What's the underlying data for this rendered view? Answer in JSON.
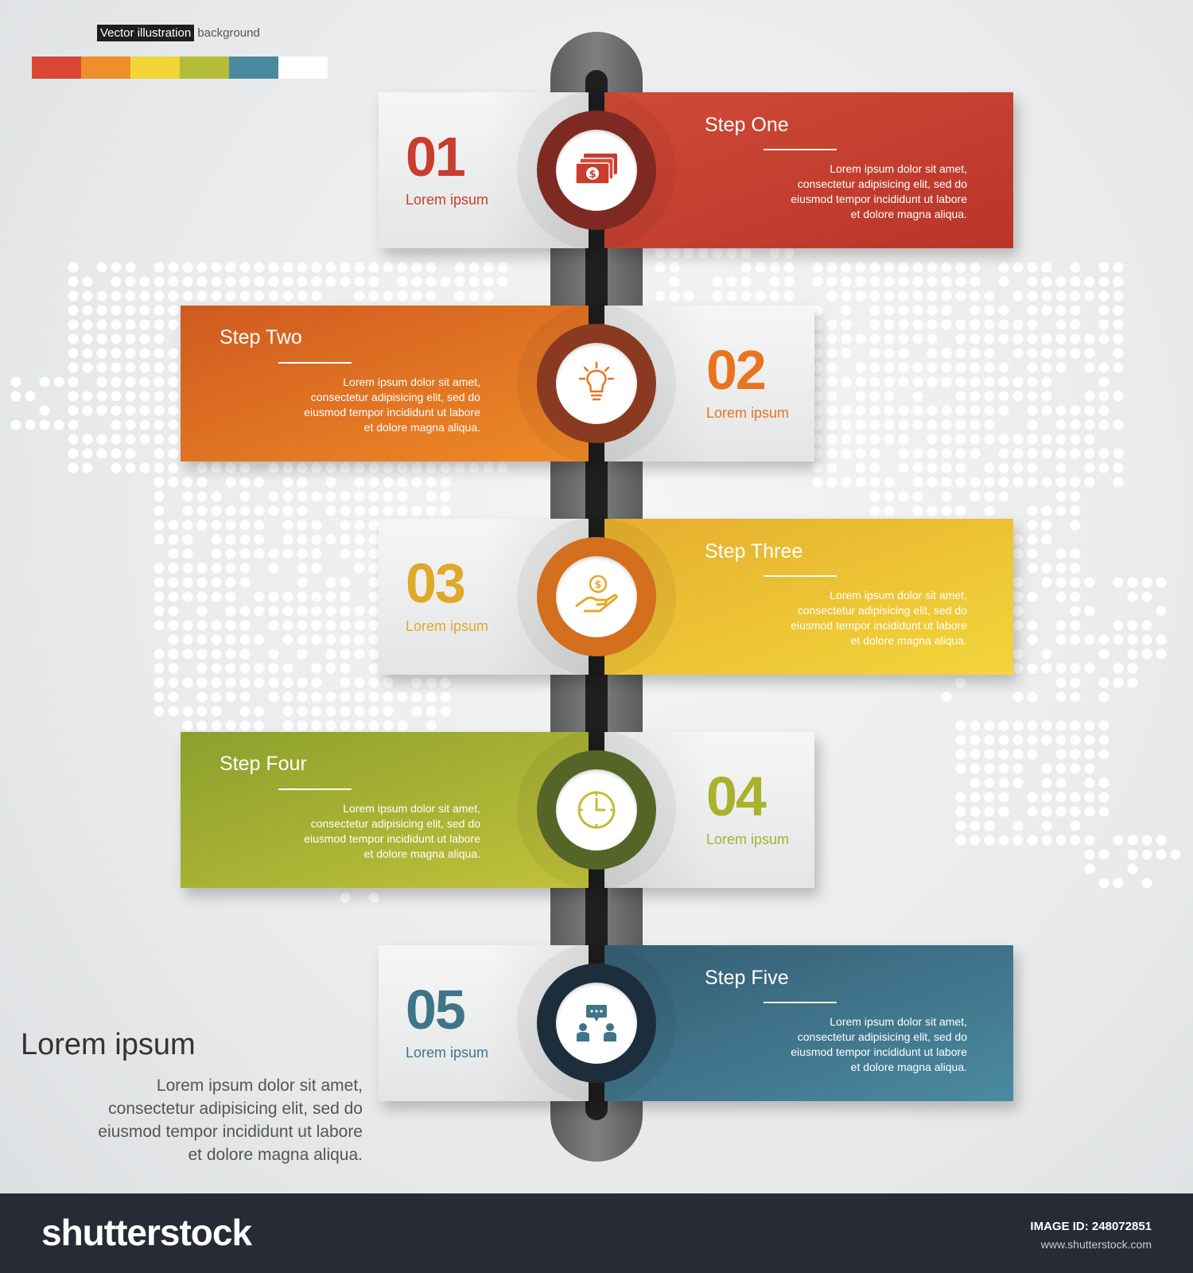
{
  "header": {
    "caption_highlight": "Vector illustration",
    "caption_rest": "background",
    "palette": [
      "#d94836",
      "#ef8e2a",
      "#f1d635",
      "#b5bd38",
      "#4a8a9e",
      "#ffffff"
    ]
  },
  "steps": [
    {
      "number": "01",
      "subtitle": "Lorem ipsum",
      "title": "Step One",
      "description": "Lorem ipsum dolor sit amet,\nconsectetur adipisicing elit, sed do\neiusmod tempor incididunt ut labore\net dolore magna aliqua.",
      "icon": "money-icon",
      "color": "#c73d2e",
      "dark": "#7e2a22"
    },
    {
      "number": "02",
      "subtitle": "Lorem ipsum",
      "title": "Step Two",
      "description": "Lorem ipsum dolor sit amet,\nconsectetur adipisicing elit, sed do\neiusmod tempor incididunt ut labore\net dolore magna aliqua.",
      "icon": "lightbulb-icon",
      "color": "#e9741f",
      "dark": "#8a3a20"
    },
    {
      "number": "03",
      "subtitle": "Lorem ipsum",
      "title": "Step Three",
      "description": "Lorem ipsum dolor sit amet,\nconsectetur adipisicing elit, sed do\neiusmod tempor incididunt ut labore\net dolore magna aliqua.",
      "icon": "hand-coin-icon",
      "color": "#eab72c",
      "dark": "#d36f1d"
    },
    {
      "number": "04",
      "subtitle": "Lorem ipsum",
      "title": "Step Four",
      "description": "Lorem ipsum dolor sit amet,\nconsectetur adipisicing elit, sed do\neiusmod tempor incididunt ut labore\net dolore magna aliqua.",
      "icon": "clock-icon",
      "color": "#a9b22c",
      "dark": "#556528"
    },
    {
      "number": "05",
      "subtitle": "Lorem ipsum",
      "title": "Step Five",
      "description": "Lorem ipsum dolor sit amet,\nconsectetur adipisicing elit, sed do\neiusmod tempor incididunt ut labore\net dolore magna aliqua.",
      "icon": "meeting-icon",
      "color": "#3f7489",
      "dark": "#1c2e3c"
    }
  ],
  "side_text": {
    "title": "Lorem ipsum",
    "body": "Lorem ipsum dolor sit amet,\nconsectetur adipisicing elit, sed do\neiusmod tempor incididunt ut labore\net dolore magna aliqua."
  },
  "footer": {
    "brand": "shutterstock",
    "image_id": "IMAGE ID: 248072851",
    "url": "www.shutterstock.com"
  }
}
